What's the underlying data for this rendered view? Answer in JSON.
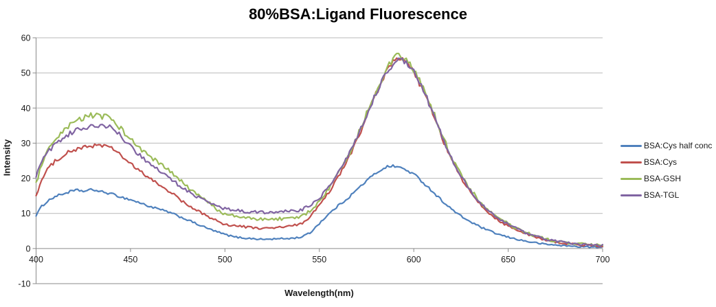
{
  "chart_data": {
    "type": "line",
    "title": "80%BSA:Ligand Fluorescence",
    "xlabel": "Wavelength(nm)",
    "ylabel": "Intensity",
    "xlim": [
      400,
      700
    ],
    "ylim": [
      -10,
      60
    ],
    "x_ticks": [
      400,
      450,
      500,
      550,
      600,
      650,
      700
    ],
    "y_ticks": [
      60,
      50,
      40,
      30,
      20,
      10,
      0,
      -10
    ],
    "grid": "horizontal-major-every-10",
    "legend_position": "right-outside",
    "colors": {
      "background": "#FFFFFF",
      "gridline": "#B8B8B8",
      "axis_line": "#8A8A8A",
      "tick_label": "#1A1A1A",
      "title_text": "#000000"
    },
    "series": [
      {
        "name": "BSA:Cys half conc",
        "color": "#4F81BD",
        "noise": 0.38,
        "points": [
          [
            400,
            9.5
          ],
          [
            403,
            12
          ],
          [
            406,
            13.5
          ],
          [
            410,
            14.8
          ],
          [
            414,
            15.5
          ],
          [
            418,
            16.2
          ],
          [
            422,
            16.6
          ],
          [
            426,
            16.3
          ],
          [
            430,
            16.8
          ],
          [
            434,
            16.2
          ],
          [
            438,
            15.8
          ],
          [
            442,
            15.2
          ],
          [
            446,
            14.5
          ],
          [
            450,
            13.9
          ],
          [
            455,
            13
          ],
          [
            460,
            12
          ],
          [
            465,
            11.2
          ],
          [
            470,
            10.4
          ],
          [
            475,
            9.3
          ],
          [
            480,
            8.2
          ],
          [
            485,
            7
          ],
          [
            490,
            5.9
          ],
          [
            495,
            4.9
          ],
          [
            500,
            4
          ],
          [
            505,
            3.3
          ],
          [
            510,
            3
          ],
          [
            515,
            2.8
          ],
          [
            520,
            2.6
          ],
          [
            525,
            2.7
          ],
          [
            530,
            2.8
          ],
          [
            535,
            2.9
          ],
          [
            540,
            3.2
          ],
          [
            545,
            4.4
          ],
          [
            550,
            7.2
          ],
          [
            555,
            9.8
          ],
          [
            560,
            12.2
          ],
          [
            565,
            14.3
          ],
          [
            570,
            16.8
          ],
          [
            575,
            19.3
          ],
          [
            580,
            21.5
          ],
          [
            585,
            23.2
          ],
          [
            590,
            23.5
          ],
          [
            595,
            22.6
          ],
          [
            600,
            21.2
          ],
          [
            605,
            18.8
          ],
          [
            610,
            16.2
          ],
          [
            615,
            13.6
          ],
          [
            620,
            11.2
          ],
          [
            625,
            9.2
          ],
          [
            630,
            7.6
          ],
          [
            635,
            6.2
          ],
          [
            640,
            5
          ],
          [
            645,
            4
          ],
          [
            650,
            3.2
          ],
          [
            655,
            2.6
          ],
          [
            660,
            2
          ],
          [
            665,
            1.6
          ],
          [
            670,
            1.2
          ],
          [
            675,
            1
          ],
          [
            680,
            0.8
          ],
          [
            685,
            0.6
          ],
          [
            690,
            0.5
          ],
          [
            695,
            0.4
          ],
          [
            700,
            0.3
          ]
        ]
      },
      {
        "name": "BSA:Cys",
        "color": "#C0504D",
        "noise": 0.5,
        "points": [
          [
            400,
            15.2
          ],
          [
            403,
            19.5
          ],
          [
            406,
            22.5
          ],
          [
            410,
            24.8
          ],
          [
            414,
            26.5
          ],
          [
            418,
            27.6
          ],
          [
            422,
            28.3
          ],
          [
            426,
            28.8
          ],
          [
            430,
            29.3
          ],
          [
            434,
            29.5
          ],
          [
            438,
            28.9
          ],
          [
            442,
            28
          ],
          [
            446,
            26
          ],
          [
            450,
            24
          ],
          [
            455,
            22
          ],
          [
            460,
            20
          ],
          [
            465,
            18.2
          ],
          [
            470,
            16.5
          ],
          [
            475,
            14.5
          ],
          [
            480,
            12.3
          ],
          [
            485,
            10.8
          ],
          [
            490,
            9.5
          ],
          [
            495,
            8
          ],
          [
            500,
            6.9
          ],
          [
            505,
            6.5
          ],
          [
            510,
            6.2
          ],
          [
            515,
            5.9
          ],
          [
            520,
            5.7
          ],
          [
            525,
            5.8
          ],
          [
            530,
            6.1
          ],
          [
            535,
            6.4
          ],
          [
            540,
            6.9
          ],
          [
            545,
            9
          ],
          [
            550,
            12.2
          ],
          [
            555,
            16
          ],
          [
            560,
            20.3
          ],
          [
            565,
            25.2
          ],
          [
            570,
            31
          ],
          [
            575,
            37.5
          ],
          [
            580,
            44
          ],
          [
            585,
            49.8
          ],
          [
            588,
            52.5
          ],
          [
            591,
            53.6
          ],
          [
            594,
            53.8
          ],
          [
            597,
            52.3
          ],
          [
            600,
            50
          ],
          [
            605,
            45
          ],
          [
            610,
            38.5
          ],
          [
            615,
            31.5
          ],
          [
            620,
            25.3
          ],
          [
            625,
            20.2
          ],
          [
            630,
            16
          ],
          [
            635,
            12.6
          ],
          [
            640,
            10
          ],
          [
            645,
            8
          ],
          [
            650,
            6.4
          ],
          [
            655,
            5.1
          ],
          [
            660,
            4
          ],
          [
            665,
            3.1
          ],
          [
            670,
            2.4
          ],
          [
            675,
            1.9
          ],
          [
            680,
            1.5
          ],
          [
            685,
            1.2
          ],
          [
            690,
            1
          ],
          [
            695,
            0.8
          ],
          [
            700,
            0.7
          ]
        ]
      },
      {
        "name": "BSA-GSH",
        "color": "#9BBB59",
        "noise": 0.62,
        "points": [
          [
            400,
            18.5
          ],
          [
            403,
            24
          ],
          [
            406,
            27.5
          ],
          [
            410,
            30.5
          ],
          [
            414,
            33
          ],
          [
            418,
            35
          ],
          [
            422,
            36.5
          ],
          [
            426,
            37.5
          ],
          [
            430,
            38
          ],
          [
            434,
            37.4
          ],
          [
            438,
            37.6
          ],
          [
            442,
            36
          ],
          [
            446,
            33.5
          ],
          [
            450,
            31
          ],
          [
            455,
            28.5
          ],
          [
            460,
            26.3
          ],
          [
            465,
            24.3
          ],
          [
            470,
            22.3
          ],
          [
            475,
            20
          ],
          [
            480,
            17.5
          ],
          [
            485,
            15.5
          ],
          [
            490,
            13.6
          ],
          [
            495,
            11.5
          ],
          [
            500,
            9.8
          ],
          [
            505,
            9.2
          ],
          [
            510,
            8.8
          ],
          [
            515,
            8.5
          ],
          [
            520,
            8.3
          ],
          [
            525,
            8.4
          ],
          [
            530,
            8.5
          ],
          [
            535,
            8.6
          ],
          [
            540,
            8.8
          ],
          [
            545,
            10.8
          ],
          [
            550,
            13.3
          ],
          [
            555,
            17
          ],
          [
            560,
            21.3
          ],
          [
            565,
            26
          ],
          [
            570,
            32
          ],
          [
            575,
            38.5
          ],
          [
            580,
            45
          ],
          [
            585,
            50.5
          ],
          [
            588,
            53
          ],
          [
            591,
            54.6
          ],
          [
            594,
            54.2
          ],
          [
            597,
            53
          ],
          [
            600,
            50.8
          ],
          [
            605,
            45.8
          ],
          [
            610,
            39.3
          ],
          [
            615,
            32.3
          ],
          [
            620,
            26
          ],
          [
            625,
            21
          ],
          [
            630,
            16.8
          ],
          [
            635,
            13.3
          ],
          [
            640,
            10.6
          ],
          [
            645,
            8.6
          ],
          [
            650,
            7
          ],
          [
            655,
            5.6
          ],
          [
            660,
            4.4
          ],
          [
            665,
            3.4
          ],
          [
            670,
            2.7
          ],
          [
            675,
            2.1
          ],
          [
            680,
            1.7
          ],
          [
            685,
            1.4
          ],
          [
            690,
            1.2
          ],
          [
            695,
            1
          ],
          [
            700,
            0.9
          ]
        ]
      },
      {
        "name": "BSA-TGL",
        "color": "#8064A2",
        "noise": 0.52,
        "points": [
          [
            400,
            20.5
          ],
          [
            403,
            25
          ],
          [
            406,
            27.5
          ],
          [
            410,
            29.5
          ],
          [
            414,
            31.3
          ],
          [
            418,
            32.8
          ],
          [
            422,
            33.8
          ],
          [
            426,
            34.4
          ],
          [
            430,
            35.1
          ],
          [
            434,
            34.6
          ],
          [
            438,
            34.9
          ],
          [
            442,
            33.5
          ],
          [
            446,
            31.5
          ],
          [
            450,
            29
          ],
          [
            455,
            26.5
          ],
          [
            460,
            24.3
          ],
          [
            465,
            22.3
          ],
          [
            470,
            20.3
          ],
          [
            475,
            18.3
          ],
          [
            480,
            16.4
          ],
          [
            485,
            14.8
          ],
          [
            490,
            13.4
          ],
          [
            495,
            12.2
          ],
          [
            500,
            11.3
          ],
          [
            505,
            10.9
          ],
          [
            510,
            10.6
          ],
          [
            515,
            10.4
          ],
          [
            520,
            10.3
          ],
          [
            525,
            10.4
          ],
          [
            530,
            10.5
          ],
          [
            535,
            10.7
          ],
          [
            540,
            10.9
          ],
          [
            545,
            12.2
          ],
          [
            550,
            14.2
          ],
          [
            555,
            17.6
          ],
          [
            560,
            21.8
          ],
          [
            565,
            26.3
          ],
          [
            570,
            32
          ],
          [
            575,
            38
          ],
          [
            580,
            44.3
          ],
          [
            585,
            49.7
          ],
          [
            588,
            52
          ],
          [
            591,
            53.3
          ],
          [
            594,
            53.6
          ],
          [
            597,
            52.5
          ],
          [
            600,
            50.3
          ],
          [
            605,
            45.3
          ],
          [
            610,
            38.8
          ],
          [
            615,
            31.8
          ],
          [
            620,
            25.5
          ],
          [
            625,
            20.5
          ],
          [
            630,
            16.4
          ],
          [
            635,
            13
          ],
          [
            640,
            10.4
          ],
          [
            645,
            8.4
          ],
          [
            650,
            6.9
          ],
          [
            655,
            5.5
          ],
          [
            660,
            4.3
          ],
          [
            665,
            3.4
          ],
          [
            670,
            2.6
          ],
          [
            675,
            2.1
          ],
          [
            680,
            1.7
          ],
          [
            685,
            1.4
          ],
          [
            690,
            1.2
          ],
          [
            695,
            1
          ],
          [
            700,
            0.9
          ]
        ]
      }
    ]
  }
}
